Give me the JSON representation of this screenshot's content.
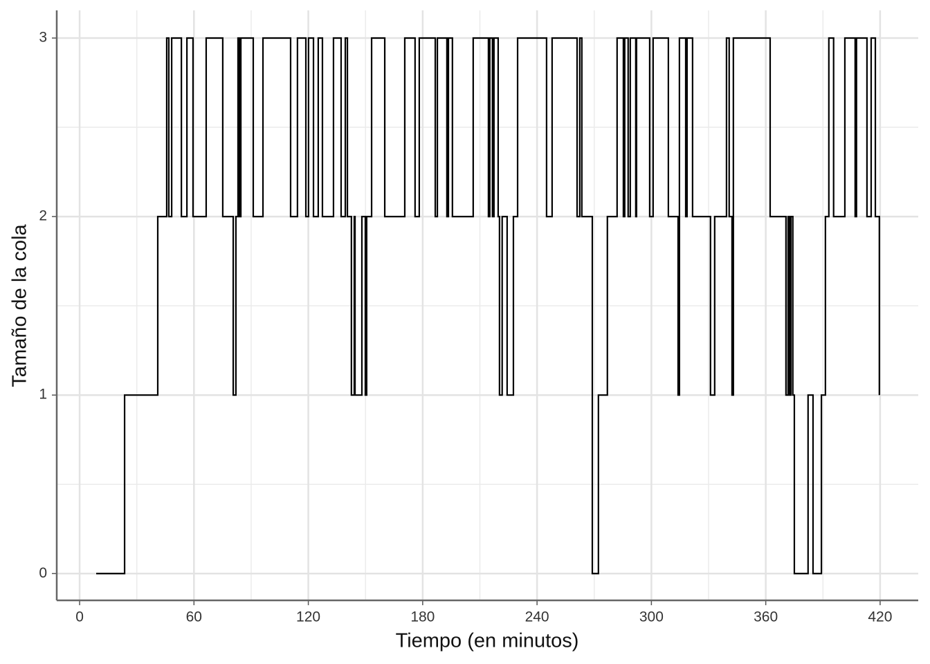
{
  "chart_data": {
    "type": "step",
    "x_label": "Tiempo (en minutos)",
    "y_label": "Tamaño de la cola",
    "x": [
      8.7,
      23.6,
      41.0,
      45.7,
      46.8,
      48.3,
      53.4,
      56.3,
      59.5,
      66.4,
      75.1,
      80.6,
      82.0,
      83.1,
      83.8,
      84.6,
      91.1,
      96.2,
      110.7,
      114.3,
      118.7,
      120.1,
      122.7,
      125.2,
      127.4,
      133.2,
      137.2,
      139.4,
      140.5,
      142.6,
      144.1,
      144.5,
      148.1,
      149.9,
      150.6,
      153.2,
      160.1,
      170.6,
      176.0,
      178.2,
      186.6,
      187.7,
      192.7,
      193.5,
      195.6,
      206.5,
      214.5,
      215.2,
      216.6,
      217.4,
      219.6,
      220.3,
      221.7,
      224.3,
      227.6,
      229.8,
      245.0,
      247.9,
      261.0,
      262.4,
      263.5,
      269.0,
      272.2,
      276.9,
      282.0,
      285.3,
      286.0,
      287.8,
      288.9,
      291.8,
      292.2,
      299.1,
      300.9,
      308.9,
      314.0,
      314.7,
      318.0,
      318.7,
      321.6,
      331.0,
      333.2,
      339.4,
      340.8,
      342.3,
      343.0,
      362.3,
      370.6,
      371.7,
      372.4,
      373.2,
      374.2,
      375.0,
      382.2,
      384.8,
      389.2,
      391.3,
      393.1,
      395.6,
      401.5,
      406.9,
      407.6,
      413.1,
      415.3,
      417.5,
      419.6
    ],
    "values": [
      0,
      1,
      2,
      3,
      2,
      3,
      2,
      3,
      2,
      3,
      2,
      1,
      2,
      3,
      2,
      3,
      2,
      3,
      2,
      3,
      2,
      3,
      2,
      3,
      2,
      3,
      2,
      3,
      2,
      1,
      2,
      1,
      2,
      1,
      2,
      3,
      2,
      3,
      2,
      3,
      2,
      3,
      2,
      3,
      2,
      3,
      2,
      3,
      2,
      3,
      2,
      1,
      2,
      1,
      2,
      3,
      2,
      3,
      2,
      3,
      2,
      0,
      1,
      2,
      3,
      2,
      3,
      2,
      3,
      2,
      3,
      2,
      3,
      2,
      1,
      3,
      2,
      3,
      2,
      1,
      2,
      3,
      2,
      1,
      3,
      2,
      1,
      2,
      1,
      2,
      1,
      0,
      1,
      0,
      1,
      2,
      3,
      2,
      3,
      2,
      3,
      2,
      3,
      2,
      1
    ],
    "color": "#000000",
    "xlim": [
      -12,
      440
    ],
    "ylim": [
      -0.15,
      3.155
    ],
    "xticks": [
      0,
      60,
      120,
      180,
      240,
      300,
      360,
      420
    ],
    "yticks": [
      0,
      1,
      2,
      3
    ],
    "grid": true
  }
}
